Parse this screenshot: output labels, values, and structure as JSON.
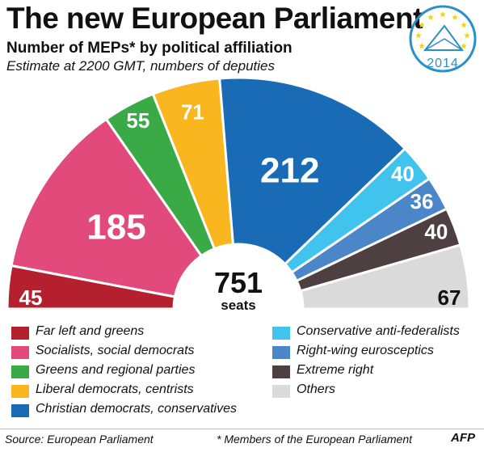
{
  "header": {
    "title": "The new European Parliament",
    "subtitle": "Number of MEPs* by political affiliation",
    "note": "Estimate at 2200 GMT, numbers of deputies"
  },
  "logo": {
    "year": "2014",
    "icon": "eu-elections-ballot-logo",
    "stars_color": "#f2d21b",
    "ring_color": "#2d8fc8"
  },
  "center": {
    "total": "751",
    "unit": "seats"
  },
  "chart_data": {
    "type": "pie",
    "variant": "half-donut parliament",
    "title": "The new European Parliament",
    "categories": [
      "Far left and greens",
      "Socialists, social democrats",
      "Greens and regional parties",
      "Liberal democrats, centrists",
      "Christian democrats, conservatives",
      "Conservative anti-federalists",
      "Right-wing eurosceptics",
      "Extreme right",
      "Others"
    ],
    "values": [
      45,
      185,
      55,
      71,
      212,
      40,
      36,
      40,
      67
    ],
    "colors": [
      "#b5202e",
      "#e34a7c",
      "#3aaa47",
      "#f9b61e",
      "#1a6bb5",
      "#40c4ee",
      "#4a86c8",
      "#4e4041",
      "#dadadb"
    ],
    "label_colors": [
      "#ffffff",
      "#ffffff",
      "#ffffff",
      "#ffffff",
      "#ffffff",
      "#ffffff",
      "#ffffff",
      "#ffffff",
      "#111111"
    ],
    "total": 751
  },
  "footer": {
    "source": "Source: European Parliament",
    "footnote": "* Members of the European Parliament",
    "credit": "AFP"
  }
}
